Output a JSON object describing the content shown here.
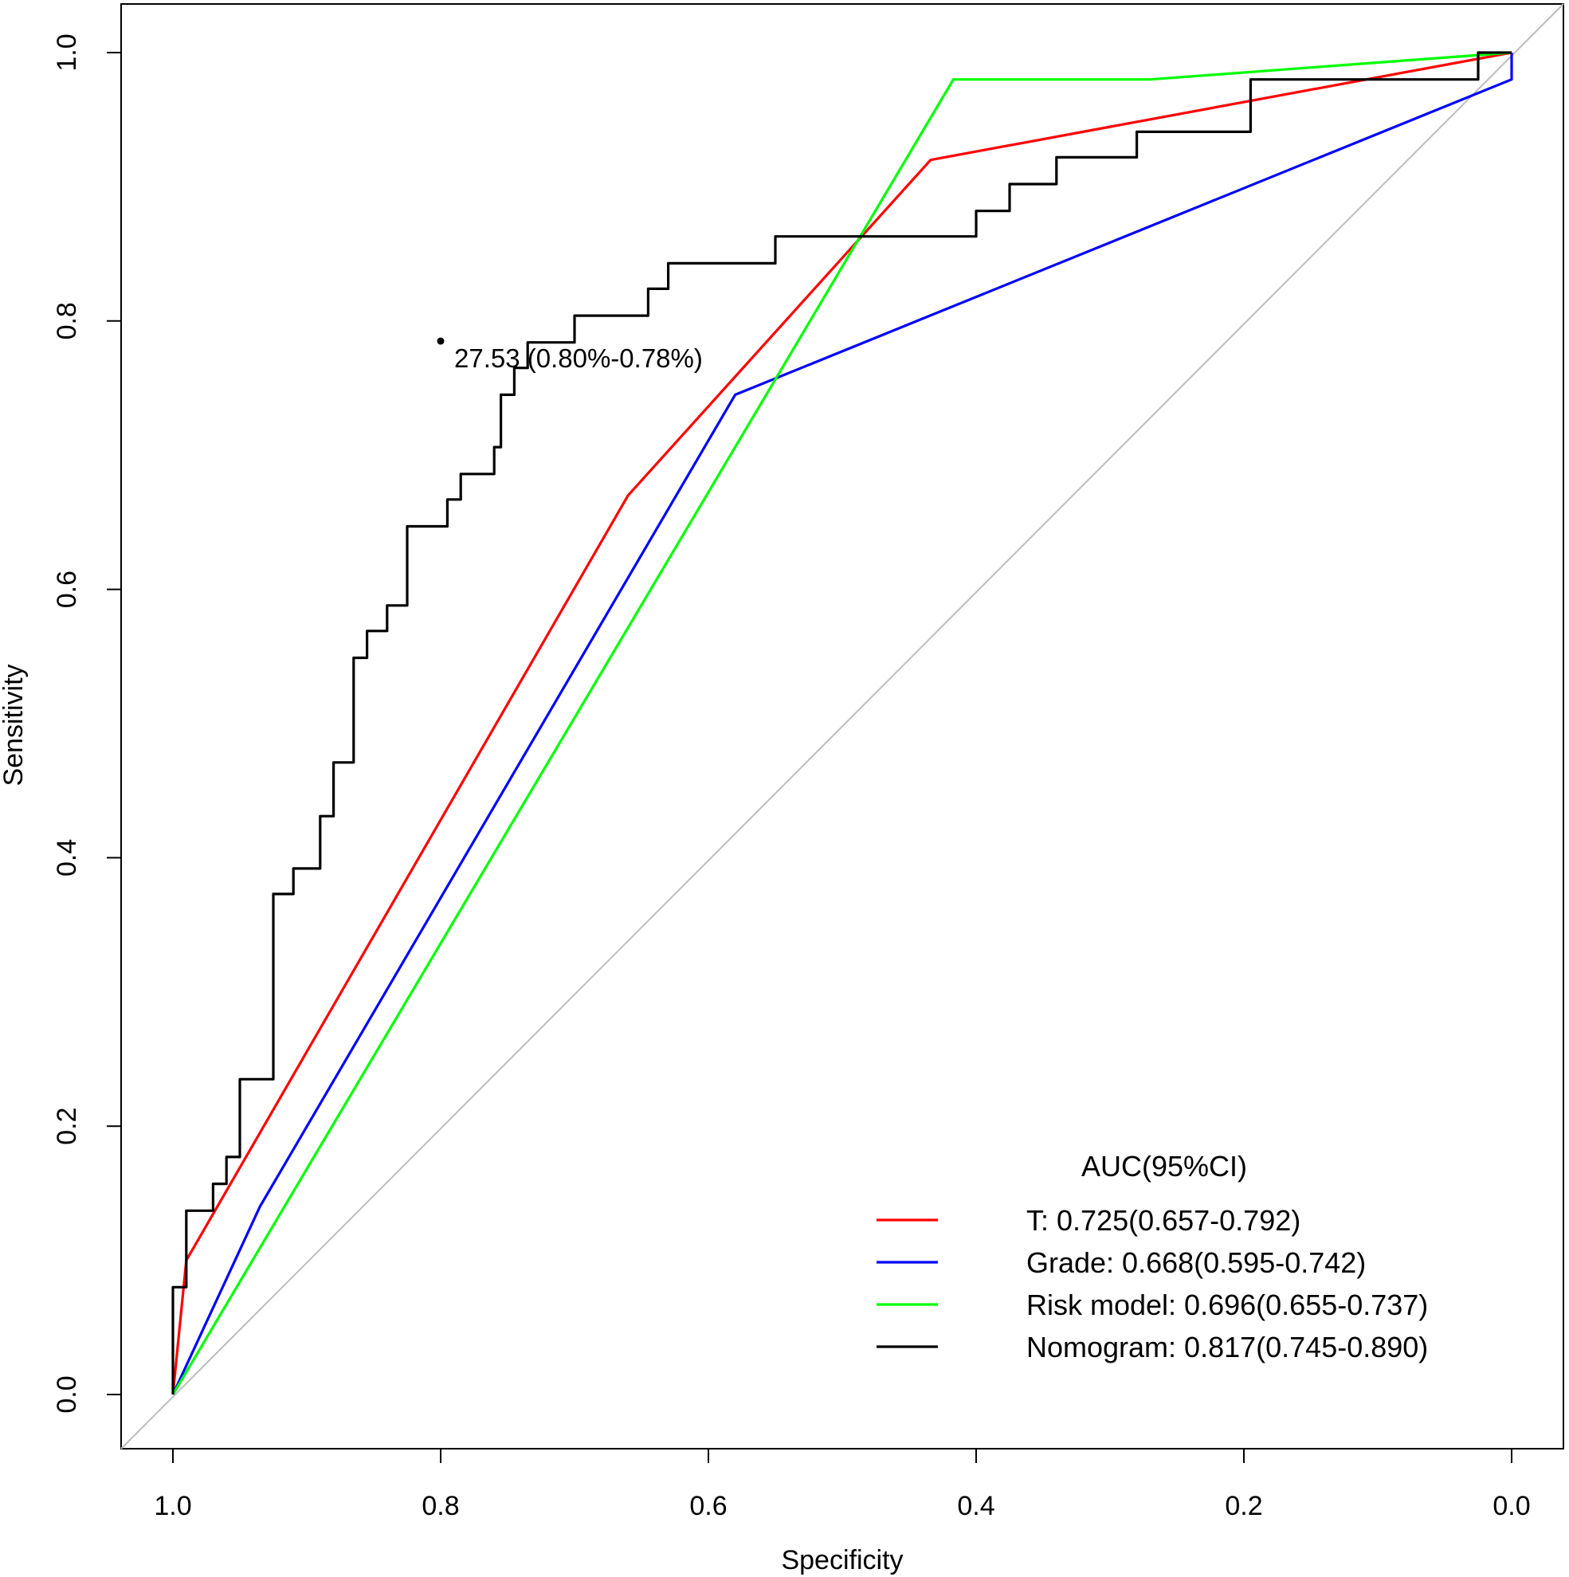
{
  "chart_data": {
    "type": "line",
    "xlabel": "Specificity",
    "ylabel": "Sensitivity",
    "xlim": [
      1.0,
      0.0
    ],
    "ylim": [
      0.0,
      1.0
    ],
    "x_ticks": [
      "1.0",
      "0.8",
      "0.6",
      "0.4",
      "0.2",
      "0.0"
    ],
    "y_ticks": [
      "0.0",
      "0.2",
      "0.4",
      "0.6",
      "0.8",
      "1.0"
    ],
    "legend_title": "AUC(95%CI)",
    "legend_position": "bottom-right",
    "reference_line": {
      "from": [
        1.0,
        0.0
      ],
      "to": [
        0.0,
        1.0
      ],
      "color": "#bdbdbd"
    },
    "annotation": {
      "text": "27.53 (0.80%-0.78%)",
      "x": 0.8,
      "y": 0.785
    },
    "series": [
      {
        "name": "T",
        "label": "T:  0.725(0.657-0.792)",
        "color": "#ff0000",
        "points": [
          [
            1.0,
            0.0
          ],
          [
            0.99,
            0.1
          ],
          [
            0.66,
            0.67
          ],
          [
            0.434,
            0.92
          ],
          [
            0.0,
            1.0
          ]
        ]
      },
      {
        "name": "Grade",
        "label": "Grade: 0.668(0.595-0.742)",
        "color": "#0000ff",
        "points": [
          [
            1.0,
            0.0
          ],
          [
            0.935,
            0.14
          ],
          [
            0.58,
            0.745
          ],
          [
            0.0,
            0.98
          ],
          [
            0.0,
            1.0
          ]
        ]
      },
      {
        "name": "Risk model",
        "label": "Risk model: 0.696(0.655-0.737)",
        "color": "#00ff00",
        "points": [
          [
            1.0,
            0.0
          ],
          [
            0.417,
            0.98
          ],
          [
            0.27,
            0.98
          ],
          [
            0.0,
            1.0
          ]
        ]
      },
      {
        "name": "Nomogram",
        "label": "Nomogram: 0.817(0.745-0.890)",
        "color": "#000000",
        "points": [
          [
            1.0,
            0.0
          ],
          [
            1.0,
            0.08
          ],
          [
            0.99,
            0.08
          ],
          [
            0.99,
            0.137
          ],
          [
            0.97,
            0.137
          ],
          [
            0.97,
            0.157
          ],
          [
            0.96,
            0.157
          ],
          [
            0.96,
            0.177
          ],
          [
            0.95,
            0.177
          ],
          [
            0.95,
            0.235
          ],
          [
            0.925,
            0.235
          ],
          [
            0.925,
            0.373
          ],
          [
            0.91,
            0.373
          ],
          [
            0.91,
            0.392
          ],
          [
            0.89,
            0.392
          ],
          [
            0.89,
            0.431
          ],
          [
            0.88,
            0.431
          ],
          [
            0.88,
            0.471
          ],
          [
            0.865,
            0.471
          ],
          [
            0.865,
            0.549
          ],
          [
            0.855,
            0.549
          ],
          [
            0.855,
            0.569
          ],
          [
            0.84,
            0.569
          ],
          [
            0.84,
            0.588
          ],
          [
            0.825,
            0.588
          ],
          [
            0.825,
            0.647
          ],
          [
            0.795,
            0.647
          ],
          [
            0.795,
            0.667
          ],
          [
            0.785,
            0.667
          ],
          [
            0.785,
            0.686
          ],
          [
            0.76,
            0.686
          ],
          [
            0.76,
            0.706
          ],
          [
            0.755,
            0.706
          ],
          [
            0.755,
            0.745
          ],
          [
            0.745,
            0.745
          ],
          [
            0.745,
            0.765
          ],
          [
            0.735,
            0.765
          ],
          [
            0.735,
            0.784
          ],
          [
            0.7,
            0.784
          ],
          [
            0.7,
            0.804
          ],
          [
            0.645,
            0.804
          ],
          [
            0.645,
            0.824
          ],
          [
            0.63,
            0.824
          ],
          [
            0.63,
            0.843
          ],
          [
            0.55,
            0.843
          ],
          [
            0.55,
            0.863
          ],
          [
            0.4,
            0.863
          ],
          [
            0.4,
            0.882
          ],
          [
            0.375,
            0.882
          ],
          [
            0.375,
            0.902
          ],
          [
            0.34,
            0.902
          ],
          [
            0.34,
            0.922
          ],
          [
            0.28,
            0.922
          ],
          [
            0.28,
            0.941
          ],
          [
            0.195,
            0.941
          ],
          [
            0.195,
            0.98
          ],
          [
            0.025,
            0.98
          ],
          [
            0.025,
            1.0
          ],
          [
            0.0,
            1.0
          ]
        ]
      }
    ]
  }
}
